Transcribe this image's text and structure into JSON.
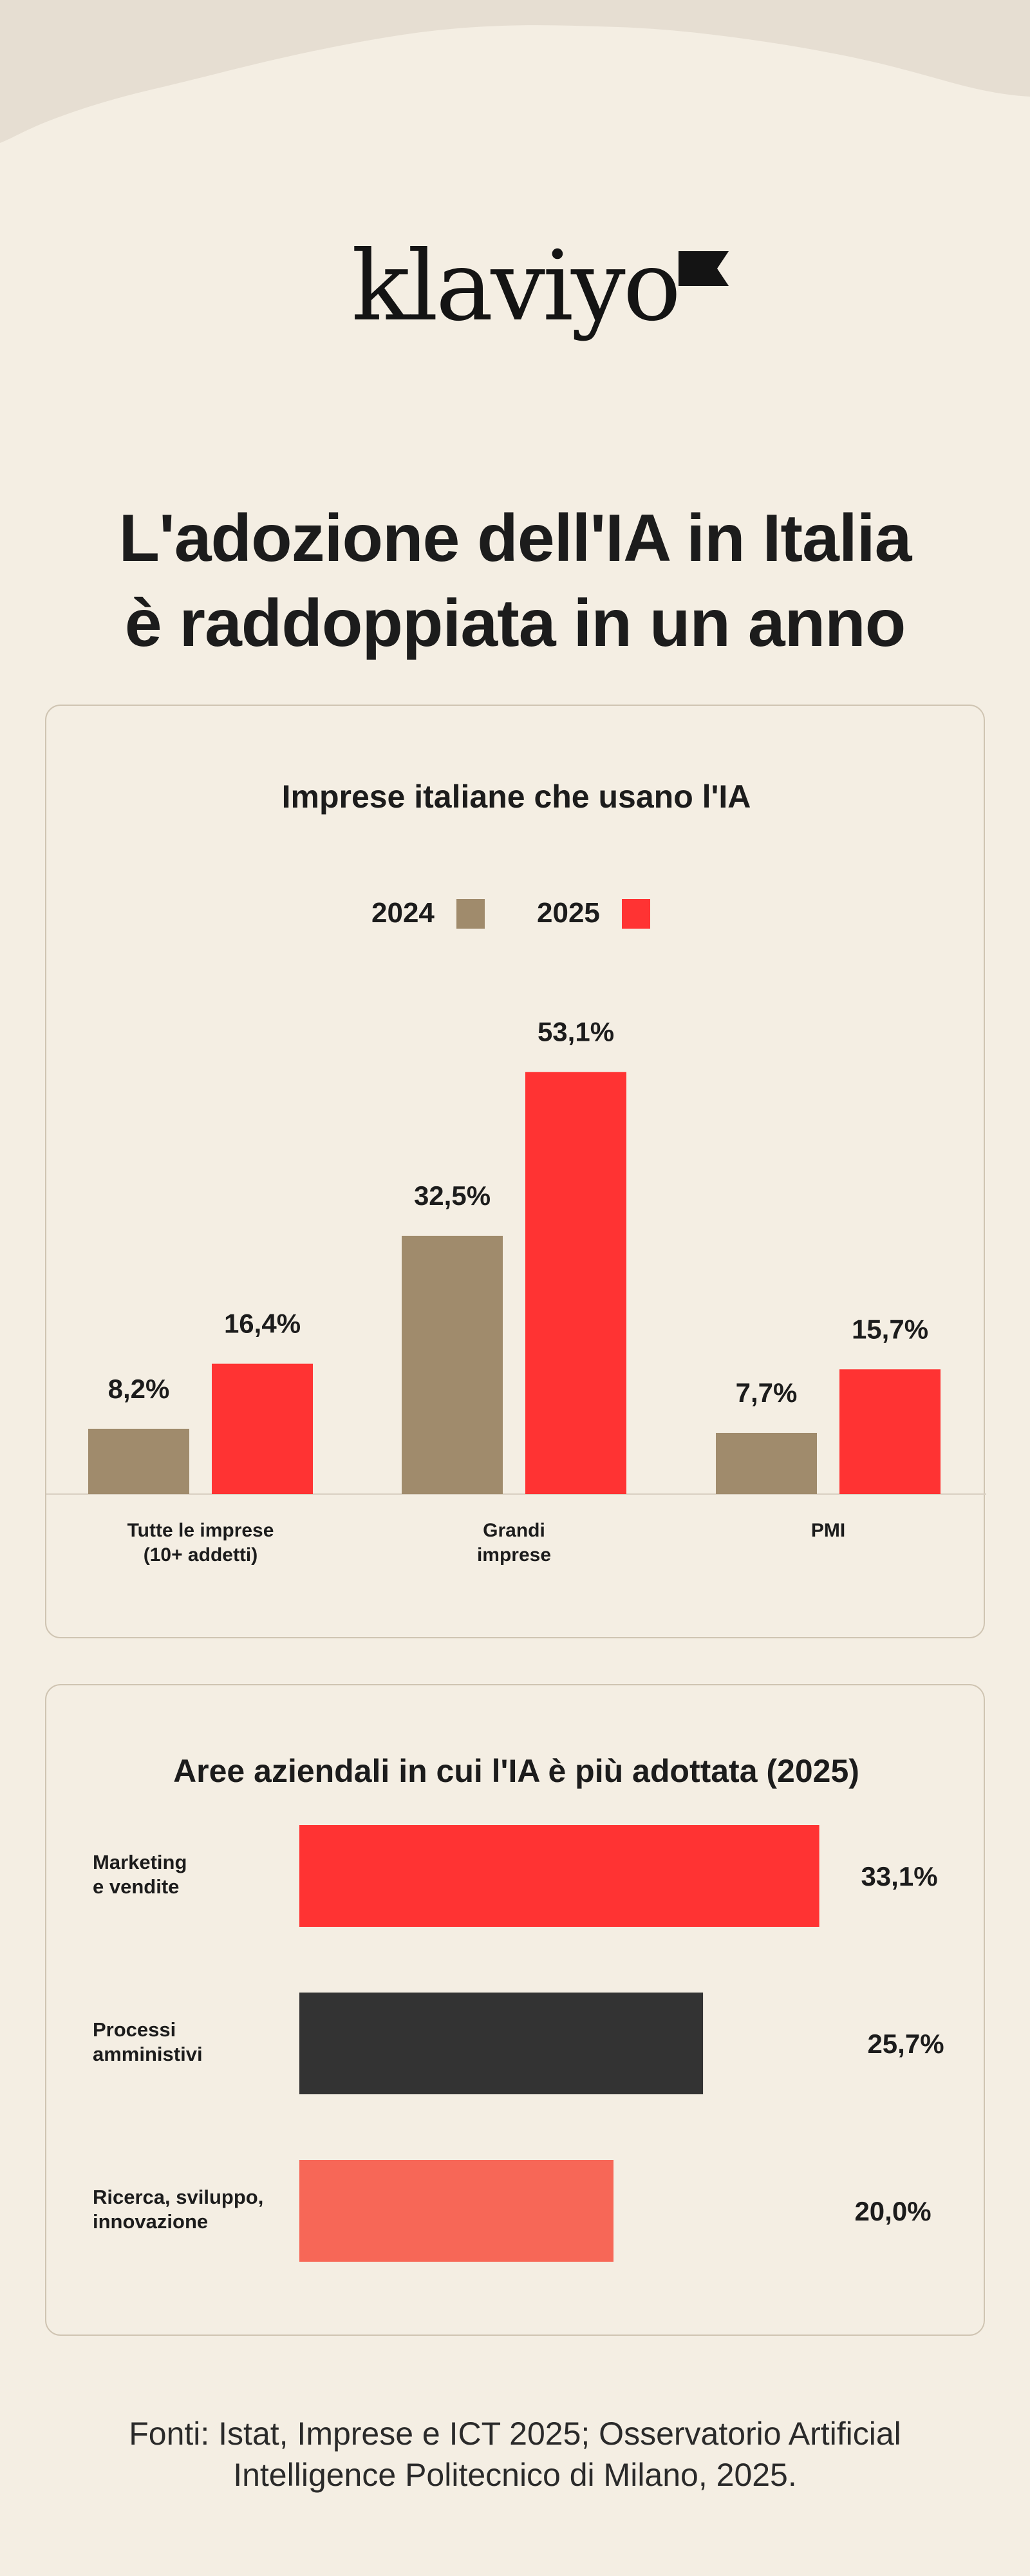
{
  "brand": {
    "logo_text": "klaviyo"
  },
  "headline": {
    "line1": "L'adozione dell'IA in Italia",
    "line2": "è raddoppiata in un anno"
  },
  "colors": {
    "background": "#f4eee3",
    "series_2024": "#a08b6c",
    "series_2025": "#ff3333",
    "bar_dark": "#333333",
    "bar_light_red": "#f76757"
  },
  "chart_data": [
    {
      "type": "bar",
      "title": "Imprese italiane che usano l'IA",
      "legend_position": "top-center",
      "categories": [
        [
          "Tutte le imprese",
          "(10+ addetti)"
        ],
        [
          "Grandi",
          "imprese"
        ],
        [
          "PMI"
        ]
      ],
      "series": [
        {
          "name": "2024",
          "values": [
            8.2,
            32.5,
            7.7
          ],
          "labels": [
            "8,2%",
            "32,5%",
            "7,7%"
          ]
        },
        {
          "name": "2025",
          "values": [
            16.4,
            53.1,
            15.7
          ],
          "labels": [
            "16,4%",
            "53,1%",
            "15,7%"
          ]
        }
      ],
      "ylim": [
        0,
        60
      ]
    },
    {
      "type": "bar",
      "orientation": "horizontal",
      "title": "Aree aziendali in cui l'IA è più adottata (2025)",
      "categories": [
        [
          "Marketing",
          "e vendite"
        ],
        [
          "Processi",
          "amministivi"
        ],
        [
          "Ricerca, sviluppo,",
          "innovazione"
        ]
      ],
      "values": [
        33.1,
        25.7,
        20.0
      ],
      "labels": [
        "33,1%",
        "25,7%",
        "20,0%"
      ],
      "xlim": [
        0,
        33.1
      ]
    }
  ],
  "source": {
    "line1": "Fonti: Istat, Imprese e ICT 2025; Osservatorio Artificial",
    "line2": "Intelligence Politecnico di Milano, 2025."
  }
}
